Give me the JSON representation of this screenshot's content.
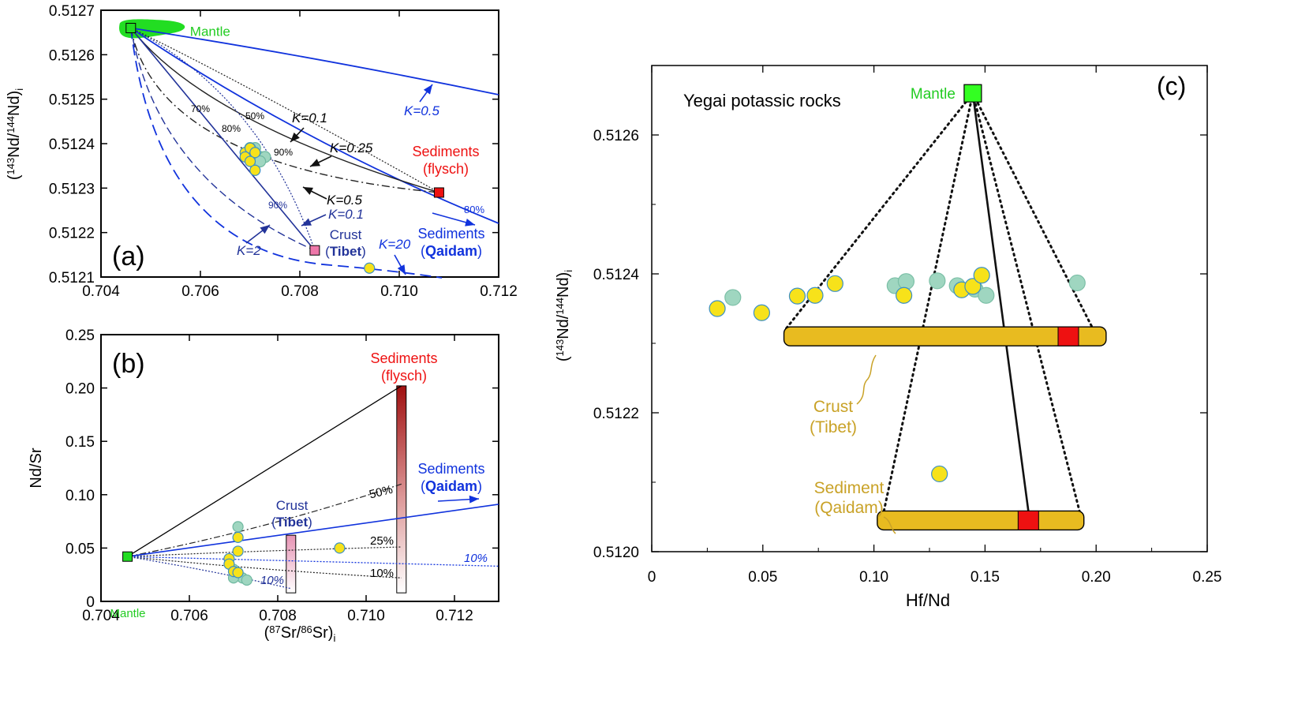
{
  "chart_data": [
    {
      "panel": "a",
      "type": "scatter",
      "panel_label": "(a)",
      "xlim": [
        0.704,
        0.712
      ],
      "ylim": [
        0.5121,
        0.5127
      ],
      "xticks": [
        "0.704",
        "0.706",
        "0.708",
        "0.710",
        "0.712"
      ],
      "yticks": [
        "0.5121",
        "0.5122",
        "0.5123",
        "0.5124",
        "0.5125",
        "0.5126",
        "0.5127"
      ],
      "ylabel": "(143Nd/144Nd)i",
      "endmembers": [
        {
          "name": "Mantle",
          "x": 0.7046,
          "y": 0.51266,
          "color": "#22cc22"
        },
        {
          "name": "Sediments",
          "sub": "(flysch)",
          "x": 0.7108,
          "y": 0.51229,
          "color": "#ee1111"
        },
        {
          "name": "Crust",
          "sub": "Tibet",
          "x": 0.7083,
          "y": 0.51216,
          "color": "#ee77aa"
        }
      ],
      "qaidam_label": {
        "name": "Sediments",
        "sub": "Qaidam"
      },
      "samples_yellow": [
        [
          0.7069,
          0.51238
        ],
        [
          0.707,
          0.51239
        ],
        [
          0.7069,
          0.51237
        ],
        [
          0.7071,
          0.51238
        ],
        [
          0.707,
          0.51236
        ],
        [
          0.7071,
          0.51234
        ],
        [
          0.7094,
          0.51212
        ]
      ],
      "samples_teal": [
        [
          0.7071,
          0.51239
        ],
        [
          0.7072,
          0.51237
        ],
        [
          0.7073,
          0.51237
        ],
        [
          0.707,
          0.51239
        ],
        [
          0.7072,
          0.51236
        ]
      ],
      "curve_labels": [
        "K=0.1",
        "K=0.25",
        "K=0.5",
        "K=0.5",
        "K=0.1",
        "K=2",
        "K=20"
      ],
      "pct_labels": [
        "70%",
        "50%",
        "80%",
        "90%",
        "90%",
        "80%"
      ]
    },
    {
      "panel": "b",
      "type": "scatter",
      "panel_label": "(b)",
      "xlim": [
        0.704,
        0.713
      ],
      "ylim": [
        0,
        0.25
      ],
      "xticks": [
        "0.704",
        "0.706",
        "0.708",
        "0.710",
        "0.712"
      ],
      "yticks": [
        "0",
        "0.05",
        "0.10",
        "0.15",
        "0.20",
        "0.25"
      ],
      "xlabel": "(87Sr/86Sr)i",
      "ylabel": "Nd/Sr",
      "mantle": {
        "name": "Mantle",
        "x": 0.7046,
        "y": 0.042
      },
      "bar_flysch": {
        "name": "Sediments",
        "sub": "(flysch)",
        "x": 0.7108,
        "y0": 0.008,
        "y1": 0.202
      },
      "bar_tibet": {
        "name": "Crust",
        "sub": "Tibet",
        "x": 0.7083,
        "y0": 0.008,
        "y1": 0.062
      },
      "qaidam_label": {
        "name": "Sediments",
        "sub": "Qaidam"
      },
      "samples_yellow": [
        [
          0.7071,
          0.06
        ],
        [
          0.7071,
          0.047
        ],
        [
          0.7069,
          0.04
        ],
        [
          0.7069,
          0.035
        ],
        [
          0.707,
          0.028
        ],
        [
          0.7071,
          0.027
        ],
        [
          0.7094,
          0.05
        ]
      ],
      "samples_teal": [
        [
          0.7071,
          0.07
        ],
        [
          0.707,
          0.03
        ],
        [
          0.7071,
          0.025
        ],
        [
          0.7072,
          0.022
        ],
        [
          0.7073,
          0.02
        ],
        [
          0.707,
          0.022
        ]
      ],
      "pct_labels": [
        "50%",
        "25%",
        "10%",
        "10%",
        "10%"
      ]
    },
    {
      "panel": "c",
      "type": "scatter",
      "panel_label": "(c)",
      "title": "Yegai potassic rocks",
      "xlim": [
        0,
        0.25
      ],
      "ylim": [
        0.512,
        0.5127
      ],
      "xticks": [
        "0",
        "0.05",
        "0.10",
        "0.15",
        "0.20",
        "0.25"
      ],
      "yticks": [
        "0.5120",
        "0.5122",
        "0.5124",
        "0.5126"
      ],
      "xlabel": "Hf/Nd",
      "ylabel": "(143Nd/144Nd)i",
      "mantle": {
        "name": "Mantle",
        "x": 0.1445,
        "y": 0.51266
      },
      "crust_bar": {
        "name": "Crust",
        "sub": "(Tibet)",
        "x0": 0.0595,
        "x1": 0.2045,
        "y": 0.51231,
        "marker_x": 0.1875
      },
      "sediment_bar": {
        "name": "Sediment",
        "sub": "(Qaidam)",
        "x0": 0.1015,
        "x1": 0.1945,
        "y": 0.512045,
        "marker_x": 0.1695
      },
      "samples_yellow": [
        [
          0.0295,
          0.51235
        ],
        [
          0.0495,
          0.512344
        ],
        [
          0.0655,
          0.512368
        ],
        [
          0.0735,
          0.512369
        ],
        [
          0.0825,
          0.512386
        ],
        [
          0.1135,
          0.512369
        ],
        [
          0.1395,
          0.512377
        ],
        [
          0.1445,
          0.512382
        ],
        [
          0.1485,
          0.512398
        ],
        [
          0.1295,
          0.512112
        ]
      ],
      "samples_teal": [
        [
          0.0365,
          0.512366
        ],
        [
          0.1095,
          0.512383
        ],
        [
          0.1145,
          0.512389
        ],
        [
          0.1285,
          0.51239
        ],
        [
          0.1375,
          0.512383
        ],
        [
          0.1455,
          0.512378
        ],
        [
          0.1505,
          0.512369
        ],
        [
          0.1915,
          0.512387
        ]
      ]
    }
  ]
}
